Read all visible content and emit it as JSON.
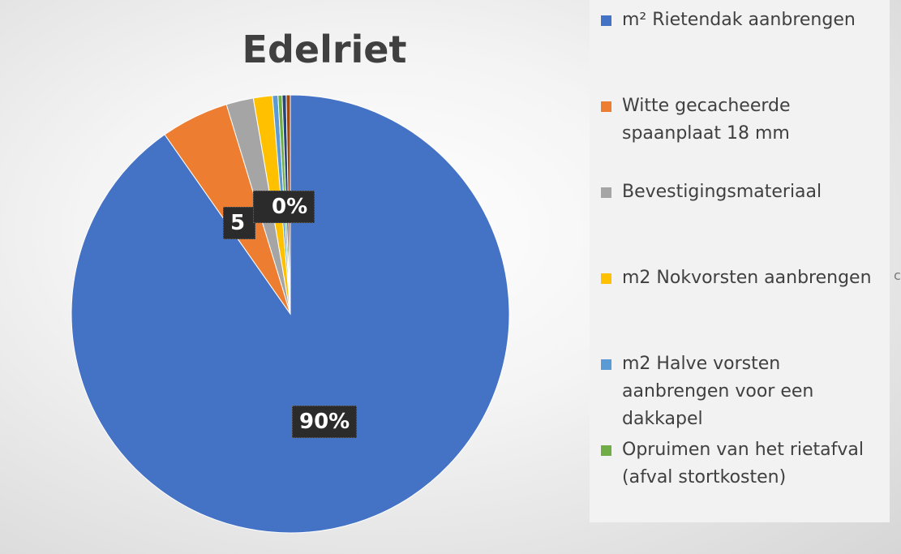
{
  "chart_data": {
    "type": "pie",
    "title": "Edelriet",
    "slices": [
      {
        "name": "m² Rietendak aanbrengen",
        "value": 90,
        "color": "#4472C4"
      },
      {
        "name": "Witte gecacheerde spaanplaat 18 mm",
        "value": 5,
        "color": "#ED7D31"
      },
      {
        "name": "Bevestigingsmateriaal",
        "value": 2,
        "color": "#A5A5A5"
      },
      {
        "name": "m2 Nokvorsten aanbrengen",
        "value": 1.4,
        "color": "#FFC000"
      },
      {
        "name": "m2 Halve vorsten aanbrengen voor een dakkapel",
        "value": 0.4,
        "color": "#5B9BD5"
      },
      {
        "name": "Opruimen van het rietafval (afval stortkosten)",
        "value": 0.3,
        "color": "#70AD47"
      },
      {
        "name": "",
        "value": 0.3,
        "color": "#264478"
      },
      {
        "name": "",
        "value": 0.3,
        "color": "#9E480E"
      }
    ],
    "data_labels": [
      "90%",
      "5",
      "0%"
    ],
    "legend_position": "right"
  },
  "legend_items": [
    {
      "label": "m² Rietendak aanbrengen",
      "color": "#4472C4"
    },
    {
      "label": "Witte gecacheerde spaanplaat 18 mm",
      "color": "#ED7D31"
    },
    {
      "label": "Bevestigingsmateriaal",
      "color": "#A5A5A5"
    },
    {
      "label": "m2 Nokvorsten aanbrengen",
      "color": "#FFC000"
    },
    {
      "label": "m2 Halve vorsten aanbrengen voor een dakkapel",
      "color": "#5B9BD5"
    },
    {
      "label": "Opruimen van het rietafval (afval stortkosten)",
      "color": "#70AD47"
    }
  ],
  "cut_glyph": "c"
}
